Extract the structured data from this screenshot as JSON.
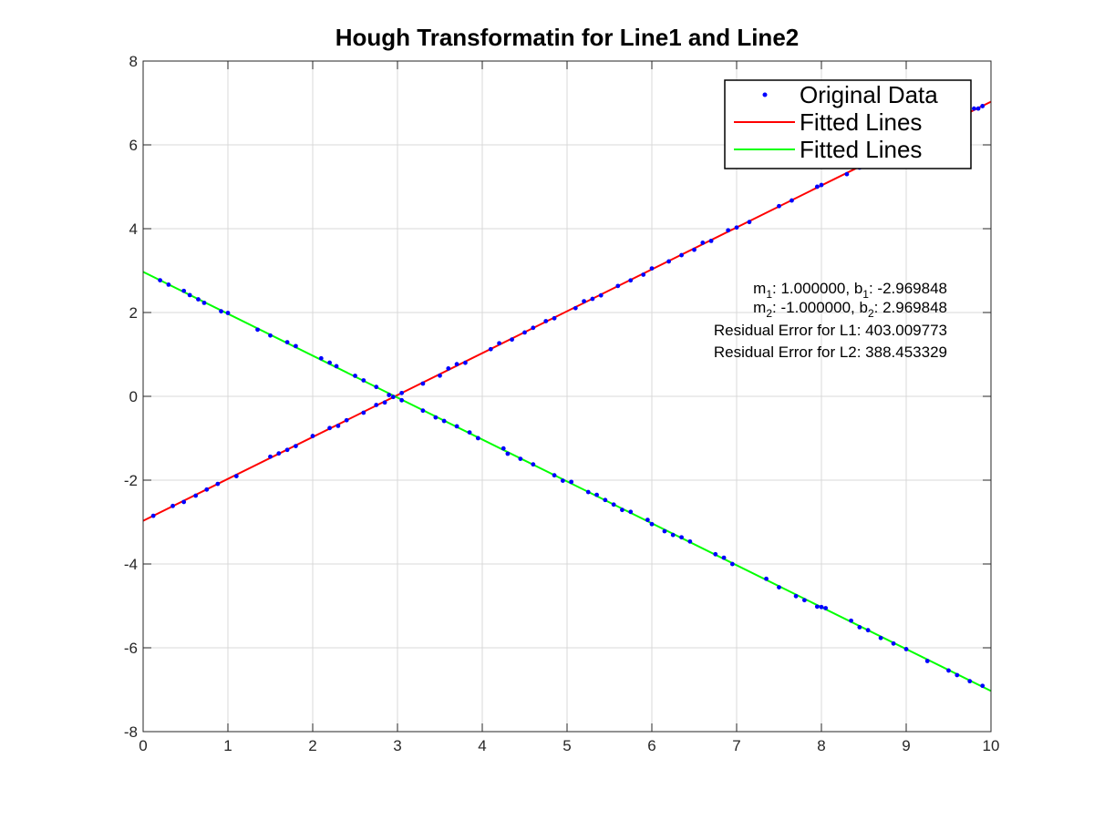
{
  "chart_data": {
    "type": "scatter",
    "title": "Hough Transformatin for Line1 and Line2",
    "xlabel": "",
    "ylabel": "",
    "xlim": [
      0,
      10
    ],
    "ylim": [
      -8,
      8
    ],
    "xticks": [
      "0",
      "1",
      "2",
      "3",
      "4",
      "5",
      "6",
      "7",
      "8",
      "9",
      "10"
    ],
    "yticks": [
      "-8",
      "-6",
      "-4",
      "-2",
      "0",
      "2",
      "4",
      "6",
      "8"
    ],
    "grid": true,
    "legend_position": "top-right",
    "colors": {
      "points": "#0000ff",
      "line1": "#ff0000",
      "line2": "#00ff00",
      "grid": "#d9d9d9",
      "axes": "#262626"
    },
    "series": [
      {
        "name": "Original Data",
        "kind": "points",
        "line1_x": [
          0.12,
          0.35,
          0.48,
          0.62,
          0.75,
          0.88,
          1.1,
          1.5,
          1.6,
          1.7,
          1.8,
          2.0,
          2.2,
          2.3,
          2.4,
          2.6,
          2.75,
          2.85,
          2.95,
          3.05,
          3.3,
          3.5,
          3.6,
          3.7,
          3.8,
          4.1,
          4.2,
          4.35,
          4.5,
          4.6,
          4.75,
          4.85,
          5.1,
          5.2,
          5.3,
          5.4,
          5.6,
          5.75,
          5.9,
          6.0,
          6.2,
          6.35,
          6.5,
          6.6,
          6.7,
          6.9,
          7.0,
          7.15,
          7.5,
          7.65,
          7.95,
          8.0,
          8.3,
          8.45,
          8.6,
          8.75,
          8.9,
          9.1,
          9.3,
          9.5,
          9.8,
          9.85,
          9.9
        ],
        "line2_x": [
          0.2,
          0.3,
          0.48,
          0.55,
          0.65,
          0.72,
          0.92,
          1.0,
          1.35,
          1.5,
          1.7,
          1.8,
          2.1,
          2.2,
          2.28,
          2.5,
          2.6,
          2.75,
          2.9,
          3.05,
          3.3,
          3.45,
          3.55,
          3.7,
          3.85,
          3.95,
          4.25,
          4.3,
          4.45,
          4.6,
          4.85,
          4.95,
          5.05,
          5.25,
          5.35,
          5.45,
          5.55,
          5.65,
          5.75,
          5.95,
          6.0,
          6.15,
          6.25,
          6.35,
          6.45,
          6.75,
          6.85,
          6.95,
          7.35,
          7.5,
          7.7,
          7.8,
          7.95,
          8.0,
          8.05,
          8.35,
          8.45,
          8.55,
          8.7,
          8.85,
          9.0,
          9.25,
          9.5,
          9.6,
          9.75,
          9.9
        ]
      },
      {
        "name": "Fitted Lines",
        "kind": "line",
        "slope": 1.0,
        "intercept": -2.969848
      },
      {
        "name": "Fitted Lines",
        "kind": "line",
        "slope": -1.0,
        "intercept": 2.969848
      }
    ],
    "annotations": {
      "m1": "m",
      "m1_sub": "1",
      "m1_val": ": 1.000000, b",
      "b1_sub": "1",
      "b1_val": ": -2.969848",
      "m2": "m",
      "m2_sub": "2",
      "m2_val": ": -1.000000, b",
      "b2_sub": "2",
      "b2_val": ": 2.969848",
      "res1": "Residual Error for L1: 403.009773",
      "res2": "Residual Error for L2: 388.453329"
    }
  }
}
